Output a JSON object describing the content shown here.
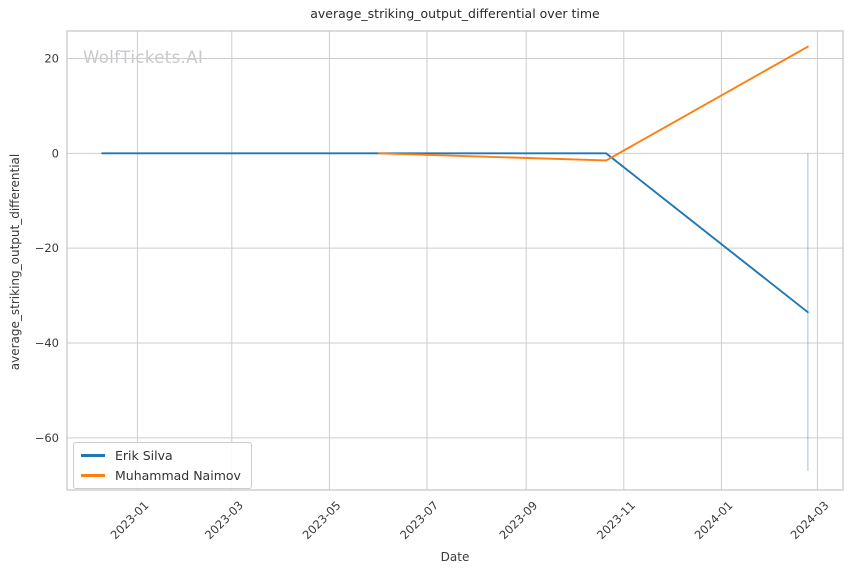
{
  "title": "average_striking_output_differential over time",
  "watermark": "WolfTickets.AI",
  "axes": {
    "xlabel": "Date",
    "ylabel": "average_striking_output_differential"
  },
  "colors": {
    "grid": "#cdcdcd",
    "spine": "#c4c4c4",
    "text": "#3a3a3a",
    "watermark": "#c8c8cd",
    "background": "#ffffff",
    "series_blue": "#1f77b4",
    "series_orange": "#ff7f0e"
  },
  "chart_data": {
    "type": "line",
    "title": "average_striking_output_differential over time",
    "xlabel": "Date",
    "ylabel": "average_striking_output_differential",
    "grid": true,
    "legend_position": "lower left",
    "x_axis": {
      "lim": [
        "2022-11-18",
        "2024-03-17"
      ],
      "ticks": [
        {
          "date": "2023-01-01",
          "label": "2023-01"
        },
        {
          "date": "2023-03-01",
          "label": "2023-03"
        },
        {
          "date": "2023-05-01",
          "label": "2023-05"
        },
        {
          "date": "2023-07-01",
          "label": "2023-07"
        },
        {
          "date": "2023-09-01",
          "label": "2023-09"
        },
        {
          "date": "2023-11-01",
          "label": "2023-11"
        },
        {
          "date": "2024-01-01",
          "label": "2024-01"
        },
        {
          "date": "2024-03-01",
          "label": "2024-03"
        }
      ]
    },
    "y_axis": {
      "lim": [
        -71,
        25.8
      ],
      "ticks": [
        {
          "value": 20,
          "label": "20"
        },
        {
          "value": 0,
          "label": "0"
        },
        {
          "value": -20,
          "label": "−20"
        },
        {
          "value": -40,
          "label": "−40"
        },
        {
          "value": -60,
          "label": "−60"
        }
      ]
    },
    "series": [
      {
        "name": "Erik Silva",
        "color": "#1f77b4",
        "points": [
          {
            "date": "2022-12-10",
            "value": 0
          },
          {
            "date": "2023-10-21",
            "value": 0
          },
          {
            "date": "2024-02-24",
            "value": -33.5
          }
        ],
        "error_bar": {
          "date": "2024-02-24",
          "low": -67,
          "high": 0
        }
      },
      {
        "name": "Muhammad Naimov",
        "color": "#ff7f0e",
        "points": [
          {
            "date": "2023-06-01",
            "value": 0
          },
          {
            "date": "2023-10-21",
            "value": -1.5
          },
          {
            "date": "2024-02-24",
            "value": 22.5
          }
        ]
      }
    ]
  }
}
